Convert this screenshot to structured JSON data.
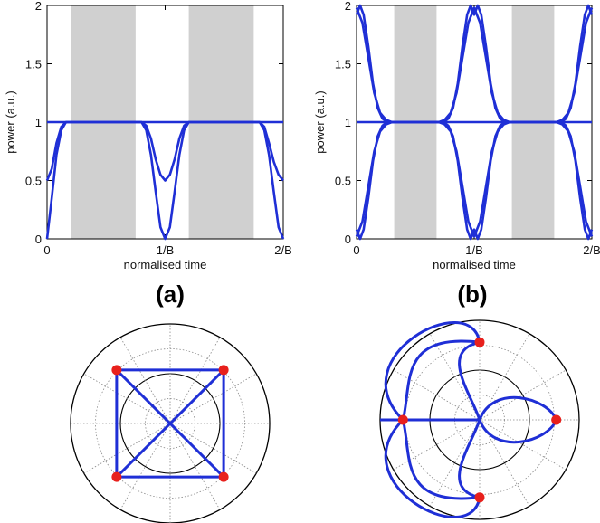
{
  "colors": {
    "trace": "#1f2fd6",
    "shade": "#d0d0d0",
    "marker": "#e8201c",
    "grid": "#8a8a8a"
  },
  "chart_data": [
    {
      "type": "line",
      "panel_label": "(a)",
      "xlabel": "normalised time",
      "ylabel": "power (a.u.)",
      "xlim": [
        0,
        2
      ],
      "ylim": [
        0,
        2
      ],
      "xticks": [
        "0",
        "1/B",
        "2/B"
      ],
      "yticks": [
        "0",
        "0.5",
        "1",
        "1.5",
        "2"
      ],
      "shaded_intervals": [
        [
          0.2,
          0.75
        ],
        [
          1.2,
          1.75
        ]
      ],
      "series": [
        {
          "x": [
            0,
            0.04,
            0.08,
            0.12,
            0.16,
            0.2,
            0.75,
            0.8,
            0.84,
            0.88,
            0.92,
            0.96,
            1.0,
            1.04,
            1.08,
            1.12,
            1.16,
            1.2,
            1.75,
            1.8,
            1.84,
            1.88,
            1.92,
            1.96,
            2.0
          ],
          "y": [
            0.5,
            0.6,
            0.82,
            0.96,
            1.0,
            1.0,
            1.0,
            1.0,
            0.97,
            0.86,
            0.68,
            0.55,
            0.5,
            0.55,
            0.68,
            0.86,
            0.97,
            1.0,
            1.0,
            1.0,
            0.96,
            0.82,
            0.66,
            0.55,
            0.5
          ]
        },
        {
          "x": [
            0,
            0.04,
            0.08,
            0.12,
            0.16,
            0.2,
            0.75,
            0.8,
            0.84,
            0.88,
            0.92,
            0.96,
            1.0,
            1.04,
            1.08,
            1.12,
            1.16,
            1.2,
            1.75,
            1.8,
            1.84,
            1.88,
            1.92,
            1.96,
            2.0
          ],
          "y": [
            0.0,
            0.35,
            0.72,
            0.93,
            1.0,
            1.0,
            1.0,
            1.0,
            0.93,
            0.72,
            0.4,
            0.1,
            0.0,
            0.1,
            0.4,
            0.72,
            0.93,
            1.0,
            1.0,
            1.0,
            0.93,
            0.72,
            0.4,
            0.1,
            0.0
          ]
        },
        {
          "x": [
            0,
            2
          ],
          "y": [
            1,
            1
          ]
        }
      ]
    },
    {
      "type": "line",
      "panel_label": "(b)",
      "xlabel": "normalised time",
      "ylabel": "power (a.u.)",
      "xlim": [
        0,
        2
      ],
      "ylim": [
        0,
        2
      ],
      "xticks": [
        "0",
        "1/B",
        "2/B"
      ],
      "yticks": [
        "0",
        "0.5",
        "1",
        "1.5",
        "2"
      ],
      "shaded_intervals": [
        [
          0.32,
          0.68
        ],
        [
          1.32,
          1.68
        ]
      ],
      "series": [
        {
          "x": [
            0,
            0.03,
            0.06,
            0.1,
            0.14,
            0.18,
            0.22,
            0.26,
            0.74,
            0.78,
            0.82,
            0.86,
            0.9,
            0.94,
            0.97,
            1.0,
            1.03,
            1.06,
            1.1,
            1.14,
            1.18,
            1.22,
            1.26,
            1.74,
            1.78,
            1.82,
            1.86,
            1.9,
            1.94,
            1.97,
            2.0
          ],
          "y": [
            1.92,
            2.0,
            1.92,
            1.65,
            1.33,
            1.12,
            1.03,
            1.0,
            1.0,
            1.03,
            1.12,
            1.33,
            1.65,
            1.92,
            2.0,
            1.92,
            2.0,
            1.92,
            1.65,
            1.33,
            1.12,
            1.03,
            1.0,
            1.0,
            1.03,
            1.12,
            1.33,
            1.65,
            1.92,
            2.0,
            1.92
          ]
        },
        {
          "x": [
            0,
            0.05,
            0.1,
            0.15,
            0.2,
            0.25,
            0.3,
            0.7,
            0.75,
            0.8,
            0.85,
            0.9,
            0.95,
            1.0,
            1.05,
            1.1,
            1.15,
            1.2,
            1.25,
            1.3,
            1.7,
            1.75,
            1.8,
            1.85,
            1.9,
            1.95,
            2.0
          ],
          "y": [
            1.98,
            1.85,
            1.55,
            1.25,
            1.08,
            1.02,
            1.0,
            1.0,
            1.02,
            1.08,
            1.25,
            1.55,
            1.85,
            1.98,
            1.85,
            1.55,
            1.25,
            1.08,
            1.02,
            1.0,
            1.0,
            1.02,
            1.08,
            1.25,
            1.55,
            1.85,
            1.98
          ]
        },
        {
          "x": [
            0,
            0.03,
            0.06,
            0.1,
            0.14,
            0.18,
            0.22,
            0.26,
            0.74,
            0.78,
            0.82,
            0.86,
            0.9,
            0.94,
            0.97,
            1.0,
            1.03,
            1.06,
            1.1,
            1.14,
            1.18,
            1.22,
            1.26,
            1.74,
            1.78,
            1.82,
            1.86,
            1.9,
            1.94,
            1.97,
            2.0
          ],
          "y": [
            0.08,
            0.0,
            0.08,
            0.35,
            0.67,
            0.88,
            0.97,
            1.0,
            1.0,
            0.97,
            0.88,
            0.67,
            0.35,
            0.08,
            0.0,
            0.08,
            0.0,
            0.08,
            0.35,
            0.67,
            0.88,
            0.97,
            1.0,
            1.0,
            0.97,
            0.88,
            0.67,
            0.35,
            0.08,
            0.0,
            0.08
          ]
        },
        {
          "x": [
            0,
            0.05,
            0.1,
            0.15,
            0.2,
            0.25,
            0.3,
            0.7,
            0.75,
            0.8,
            0.85,
            0.9,
            0.95,
            1.0,
            1.05,
            1.1,
            1.15,
            1.2,
            1.25,
            1.3,
            1.7,
            1.75,
            1.8,
            1.85,
            1.9,
            1.95,
            2.0
          ],
          "y": [
            0.02,
            0.15,
            0.45,
            0.75,
            0.92,
            0.98,
            1.0,
            1.0,
            0.98,
            0.92,
            0.75,
            0.45,
            0.15,
            0.02,
            0.15,
            0.45,
            0.75,
            0.92,
            0.98,
            1.0,
            1.0,
            0.98,
            0.92,
            0.75,
            0.45,
            0.15,
            0.02
          ]
        },
        {
          "x": [
            0,
            2
          ],
          "y": [
            1,
            1
          ]
        }
      ]
    },
    {
      "type": "polar",
      "rmax": 1.0,
      "points": [
        {
          "r": 0.76,
          "theta_deg": 45
        },
        {
          "r": 0.76,
          "theta_deg": 135
        },
        {
          "r": 0.76,
          "theta_deg": 225
        },
        {
          "r": 0.76,
          "theta_deg": 315
        }
      ],
      "edges": [
        [
          0,
          1
        ],
        [
          1,
          2
        ],
        [
          2,
          3
        ],
        [
          3,
          0
        ],
        [
          0,
          2
        ],
        [
          1,
          3
        ]
      ]
    },
    {
      "type": "polar",
      "rmax": 1.0,
      "points": [
        {
          "r": 0.78,
          "theta_deg": 90
        },
        {
          "r": 0.77,
          "theta_deg": 0
        },
        {
          "r": 0.78,
          "theta_deg": -90
        },
        {
          "r": 0.77,
          "theta_deg": 180
        }
      ],
      "arcs": [
        {
          "note": "large arc",
          "from": 0,
          "to": 3,
          "bulge_to": "left"
        },
        {
          "note": "large arc",
          "from": 2,
          "to": 3,
          "bulge_to": "left"
        },
        {
          "note": "arc via origin",
          "from": 0,
          "to": 2,
          "bulge_to": "left"
        },
        {
          "note": "upper petal",
          "from": 0,
          "to": 1,
          "bulge_to": "inside"
        },
        {
          "note": "lower petal",
          "from": 2,
          "to": 1,
          "bulge_to": "inside"
        }
      ],
      "radial_line": {
        "from_theta_deg": 180,
        "to_origin": true
      }
    }
  ]
}
